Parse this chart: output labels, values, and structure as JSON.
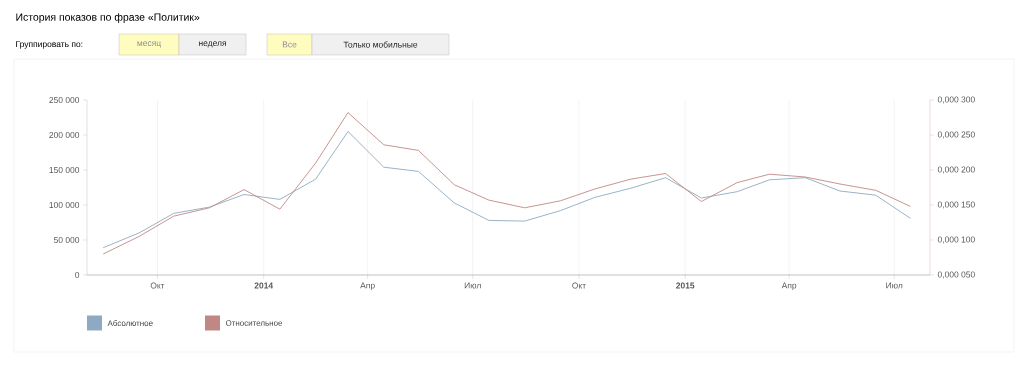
{
  "chart_data": {
    "type": "line",
    "title": "История показов по фразе «Политик»",
    "annotations": [
      "Группировать по:",
      "месяц",
      "неделя",
      "Все",
      "Только мобильные"
    ],
    "x": [
      "2013-08-15",
      "2013-09-15",
      "2013-10-15",
      "2013-11-15",
      "2013-12-15",
      "2014-01-15",
      "2014-02-15",
      "2014-03-15",
      "2014-04-15",
      "2014-05-15",
      "2014-06-15",
      "2014-07-15",
      "2014-08-15",
      "2014-09-15",
      "2014-10-15",
      "2014-11-15",
      "2014-12-15",
      "2015-01-15",
      "2015-02-15",
      "2015-03-15",
      "2015-04-15",
      "2015-05-15",
      "2015-06-15",
      "2015-07-15"
    ],
    "series": [
      {
        "name": "Абсолютное",
        "color": "#8eaac2",
        "values": [
          39000,
          60000,
          88000,
          97000,
          115000,
          108000,
          137000,
          205000,
          154000,
          148000,
          103000,
          78000,
          77000,
          92000,
          111000,
          124000,
          139000,
          110000,
          119000,
          136000,
          139000,
          120000,
          114000,
          81000
        ]
      },
      {
        "name": "Относительное",
        "color": "#c08884",
        "axis": "y2",
        "values": [
          8e-05,
          0.000105,
          0.000134,
          0.000146,
          0.000172,
          0.000144,
          0.00021,
          0.000282,
          0.000236,
          0.000228,
          0.000179,
          0.000157,
          0.000146,
          0.000156,
          0.000173,
          0.000187,
          0.000195,
          0.000155,
          0.000182,
          0.000194,
          0.00019,
          0.00018,
          0.000171,
          0.000148
        ]
      }
    ],
    "xlim": [
      "2013-08-01",
      "2015-08-01"
    ],
    "xticks": [
      {
        "value": "2013-10",
        "label": "Окт"
      },
      {
        "value": "2014-01",
        "label": "2014"
      },
      {
        "value": "2014-04",
        "label": "Апр"
      },
      {
        "value": "2014-07",
        "label": "Июл"
      },
      {
        "value": "2014-10",
        "label": "Окт"
      },
      {
        "value": "2015-01",
        "label": "2015"
      },
      {
        "value": "2015-04",
        "label": "Апр"
      },
      {
        "value": "2015-07",
        "label": "Июл"
      }
    ],
    "ylim": [
      0,
      250000
    ],
    "yticks": [
      0,
      {
        "value": 50000,
        "label": "50 000"
      },
      {
        "value": 100000,
        "label": "100 000"
      },
      {
        "value": 150000,
        "label": "150 000"
      },
      {
        "value": 200000,
        "label": "200 000"
      },
      {
        "value": 250000,
        "label": "250 000"
      }
    ],
    "y2lim": [
      5e-05,
      0.0003
    ],
    "y2ticks": [
      {
        "value": 5e-05,
        "label": "0,000 050"
      },
      {
        "value": 0.0001,
        "label": "0,000 100"
      },
      {
        "value": 0.00015,
        "label": "0,000 150"
      },
      {
        "value": 0.0002,
        "label": "0,000 200"
      },
      {
        "value": 0.00025,
        "label": "0,000 250"
      },
      {
        "value": 0.0003,
        "label": "0,000 300"
      }
    ],
    "grid": "x",
    "legend": "bottom left",
    "line_style": "solid"
  }
}
